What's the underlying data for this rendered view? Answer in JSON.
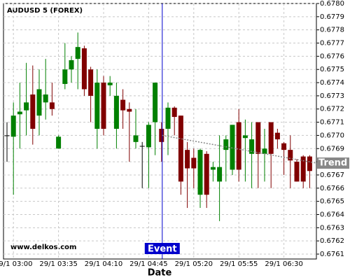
{
  "chart_data": {
    "type": "candlestick",
    "title": "AUDUSD 5 (FOREX)",
    "watermark": "www.delkos.com",
    "x_label": "Date",
    "categories": [
      null,
      "29/1 03:00",
      null,
      null,
      null,
      null,
      null,
      null,
      "29/1 03:35",
      null,
      null,
      null,
      null,
      null,
      null,
      "29/1 04:10",
      null,
      null,
      null,
      null,
      null,
      null,
      "29/1 04:45",
      null,
      null,
      null,
      null,
      null,
      null,
      "29/1 05:20",
      null,
      null,
      null,
      null,
      null,
      null,
      "29/1 05:55",
      null,
      null,
      null,
      null,
      null,
      null,
      "29/1 06:30",
      null,
      null,
      null,
      null
    ],
    "open": [
      0.677,
      0.67699,
      0.67716,
      0.67719,
      0.67731,
      0.67715,
      0.67725,
      0.67725,
      0.6769,
      0.67739,
      0.6775,
      0.67758,
      0.67766,
      0.6775,
      0.67705,
      0.6774,
      0.67738,
      0.67705,
      0.67727,
      0.6772,
      0.67695,
      0.67692,
      0.67691,
      0.6771,
      0.67705,
      0.67705,
      0.67721,
      0.67715,
      0.67689,
      0.67683,
      0.67655,
      0.67686,
      0.67674,
      0.67665,
      0.67689,
      0.67674,
      0.6771,
      0.67698,
      0.67686,
      0.6771,
      0.67686,
      0.6771,
      0.67702,
      0.67694,
      0.67689,
      0.6768,
      0.67684,
      0.67684
    ],
    "high": [
      0.6771,
      0.67725,
      0.6774,
      0.67755,
      0.67753,
      0.6775,
      0.67758,
      0.6774,
      0.677,
      0.6777,
      0.6776,
      0.67778,
      0.67768,
      0.67752,
      0.6775,
      0.67745,
      0.67745,
      0.6774,
      0.67735,
      0.67725,
      0.6772,
      0.67695,
      0.6771,
      0.6774,
      0.6771,
      0.67725,
      0.67722,
      0.67715,
      0.67695,
      0.6769,
      0.6769,
      0.67688,
      0.6768,
      0.677,
      0.677,
      0.67708,
      0.6772,
      0.67712,
      0.6771,
      0.6771,
      0.67705,
      0.6771,
      0.67705,
      0.67695,
      0.677,
      0.67682,
      0.67685,
      0.67685
    ],
    "low": [
      0.6768,
      0.67655,
      0.6769,
      0.677,
      0.67693,
      0.677,
      0.67712,
      0.67715,
      0.6769,
      0.67735,
      0.6774,
      0.67735,
      0.6773,
      0.6771,
      0.6769,
      0.677,
      0.6773,
      0.6769,
      0.67705,
      0.6768,
      0.6769,
      0.6766,
      0.6766,
      0.67685,
      0.6768,
      0.67685,
      0.677,
      0.67655,
      0.67645,
      0.6766,
      0.67645,
      0.67645,
      0.67665,
      0.67635,
      0.67665,
      0.6767,
      0.67665,
      0.67665,
      0.6766,
      0.6766,
      0.67665,
      0.6766,
      0.6769,
      0.6767,
      0.6766,
      0.67665,
      0.6766,
      0.6766
    ],
    "close": [
      0.677,
      0.67715,
      0.67718,
      0.67725,
      0.67705,
      0.67735,
      0.67731,
      0.6772,
      0.67699,
      0.6775,
      0.67757,
      0.67767,
      0.67735,
      0.6773,
      0.6774,
      0.67705,
      0.6774,
      0.6773,
      0.67719,
      0.67718,
      0.677,
      0.67692,
      0.67708,
      0.6774,
      0.67695,
      0.67721,
      0.67714,
      0.67665,
      0.67675,
      0.67675,
      0.67689,
      0.67655,
      0.67676,
      0.67676,
      0.67697,
      0.67708,
      0.67674,
      0.677,
      0.67697,
      0.67686,
      0.6769,
      0.67686,
      0.67697,
      0.67689,
      0.67681,
      0.67665,
      0.67665,
      0.67673
    ],
    "up_color": "#008000",
    "down_color": "#800000",
    "event": {
      "label": "Event",
      "color": "#0000cc"
    },
    "trend": {
      "label": "Trend",
      "values": [
        0.677,
        0.67679
      ],
      "color": "#888888"
    },
    "ylim": [
      0.6761,
      0.678
    ],
    "yticks": [
      0.6761,
      0.6762,
      0.6763,
      0.6764,
      0.6765,
      0.6766,
      0.6767,
      0.6768,
      0.6769,
      {
        "value": 0.677,
        "label": "0.6770"
      },
      0.6771,
      0.6772,
      0.6773,
      0.6774,
      0.6775,
      0.6776,
      0.6777,
      0.6778,
      0.6779,
      {
        "value": 0.678,
        "label": "0.6780"
      }
    ],
    "grid": true
  }
}
